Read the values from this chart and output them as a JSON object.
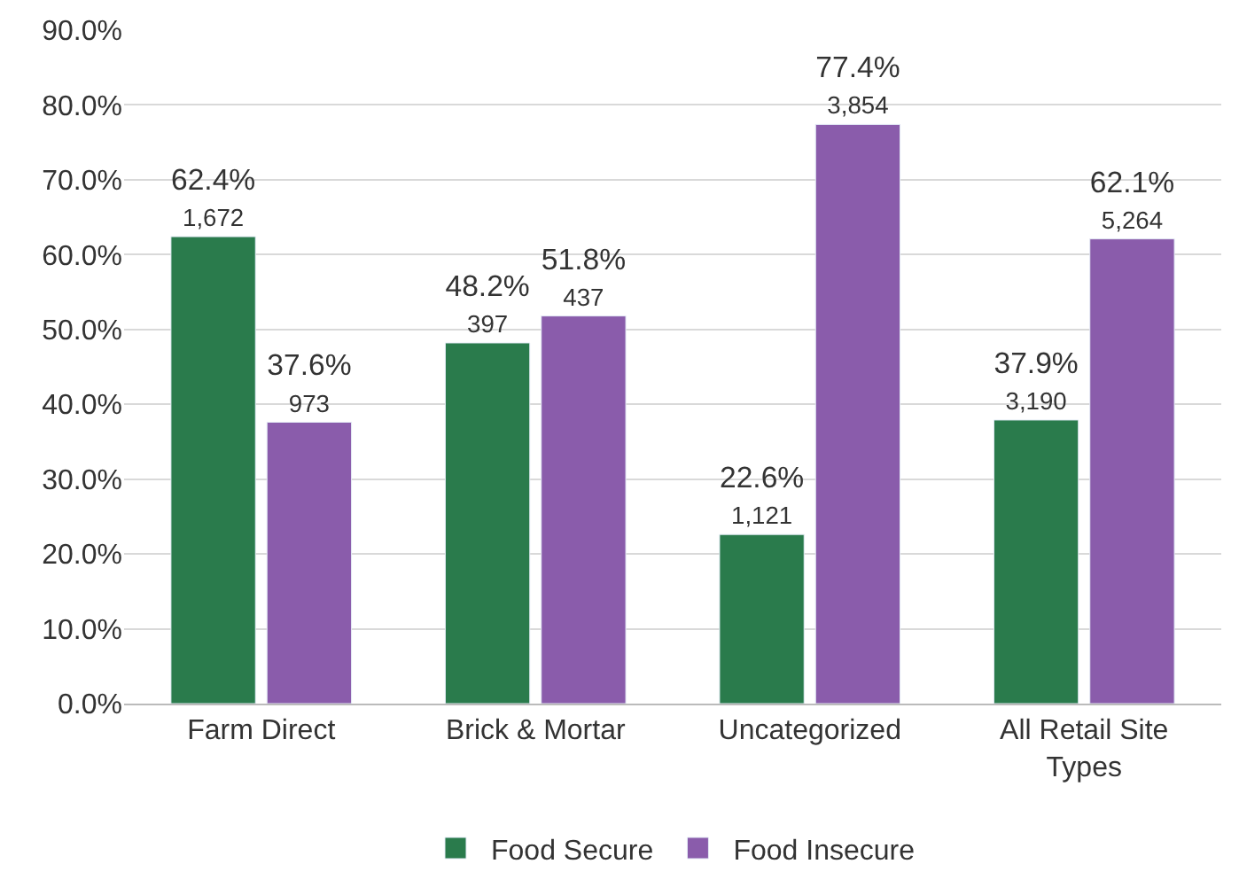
{
  "chart_data": {
    "type": "bar",
    "categories": [
      "Farm Direct",
      "Brick & Mortar",
      "Uncategorized",
      "All Retail Site Types"
    ],
    "series": [
      {
        "name": "Food Secure",
        "color": "#2a7b4c",
        "values": [
          62.4,
          48.2,
          22.6,
          37.9
        ],
        "value_labels": [
          "62.4%\n1,672",
          "48.2%\n397",
          "22.6%\n1,121",
          "37.9%\n3,190"
        ]
      },
      {
        "name": "Food Insecure",
        "color": "#8a5cab",
        "values": [
          37.6,
          51.8,
          77.4,
          62.1
        ],
        "value_labels": [
          "37.6%\n973",
          "51.8%\n437",
          "77.4%\n3,854",
          "62.1%\n5,264"
        ]
      }
    ],
    "ylim": [
      0,
      90
    ],
    "yticks": [
      {
        "value": 0,
        "label": "0.0%"
      },
      {
        "value": 10,
        "label": "10.0%"
      },
      {
        "value": 20,
        "label": "20.0%"
      },
      {
        "value": 30,
        "label": "30.0%"
      },
      {
        "value": 40,
        "label": "40.0%"
      },
      {
        "value": 50,
        "label": "50.0%"
      },
      {
        "value": 60,
        "label": "60.0%"
      },
      {
        "value": 70,
        "label": "70.0%"
      },
      {
        "value": 80,
        "label": "80.0%"
      },
      {
        "value": 90,
        "label": "90.0%"
      }
    ],
    "grid": "y",
    "legend": "bottom"
  }
}
